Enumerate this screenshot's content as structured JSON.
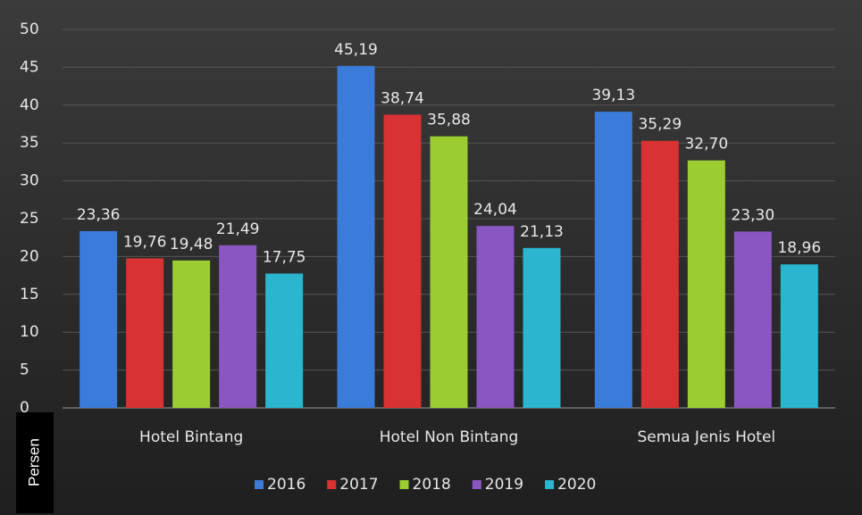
{
  "chart_data": {
    "type": "bar",
    "y_label": "Persen",
    "categories": [
      "Hotel Bintang",
      "Hotel Non Bintang",
      "Semua Jenis Hotel"
    ],
    "series": [
      {
        "name": "2016",
        "color": "#3b7bd9",
        "values": [
          23.36,
          45.19,
          39.13
        ],
        "value_labels": [
          "23,36",
          "45,19",
          "39,13"
        ]
      },
      {
        "name": "2017",
        "color": "#d83232",
        "values": [
          19.76,
          38.74,
          35.29
        ],
        "value_labels": [
          "19,76",
          "38,74",
          "35,29"
        ]
      },
      {
        "name": "2018",
        "color": "#9bcd33",
        "values": [
          19.48,
          35.88,
          32.7
        ],
        "value_labels": [
          "19,48",
          "35,88",
          "32,70"
        ]
      },
      {
        "name": "2019",
        "color": "#8a56c2",
        "values": [
          21.49,
          24.04,
          23.3
        ],
        "value_labels": [
          "21,49",
          "24,04",
          "23,30"
        ]
      },
      {
        "name": "2020",
        "color": "#2bb6cf",
        "values": [
          17.75,
          21.13,
          18.96
        ],
        "value_labels": [
          "17,75",
          "21,13",
          "18,96"
        ]
      }
    ],
    "ylim": [
      0,
      50
    ],
    "yticks": [
      0,
      5,
      10,
      15,
      20,
      25,
      30,
      35,
      40,
      45,
      50
    ],
    "grid": true,
    "legend": "bottom"
  }
}
